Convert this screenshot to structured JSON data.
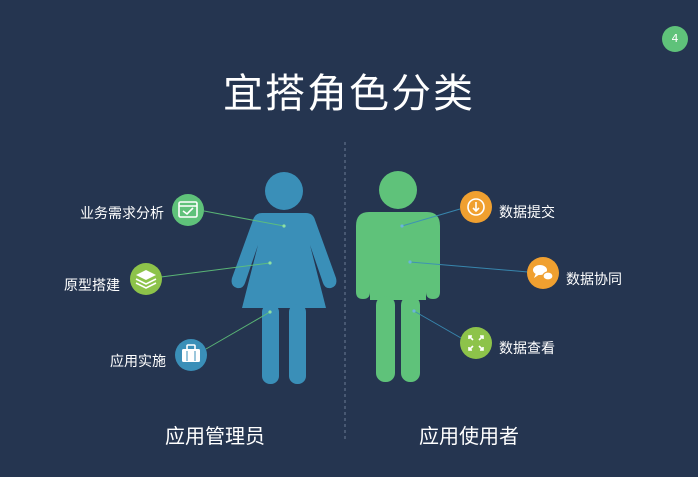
{
  "page_number": "4",
  "title": "宜搭角色分类",
  "admin": {
    "role_label": "应用管理员",
    "figure_color": "#3a8fb8",
    "features": [
      {
        "label": "业务需求分析",
        "icon": "checklist-window-icon",
        "color": "#5fc27a"
      },
      {
        "label": "原型搭建",
        "icon": "layers-icon",
        "color": "#8dc34a"
      },
      {
        "label": "应用实施",
        "icon": "briefcase-icon",
        "color": "#3a8fb8"
      }
    ]
  },
  "user": {
    "role_label": "应用使用者",
    "figure_color": "#5fc27a",
    "features": [
      {
        "label": "数据提交",
        "icon": "upload-arrow-icon",
        "color": "#f0a030"
      },
      {
        "label": "数据协同",
        "icon": "chat-bubbles-icon",
        "color": "#f0a030"
      },
      {
        "label": "数据查看",
        "icon": "expand-arrows-icon",
        "color": "#8dc34a"
      }
    ]
  }
}
